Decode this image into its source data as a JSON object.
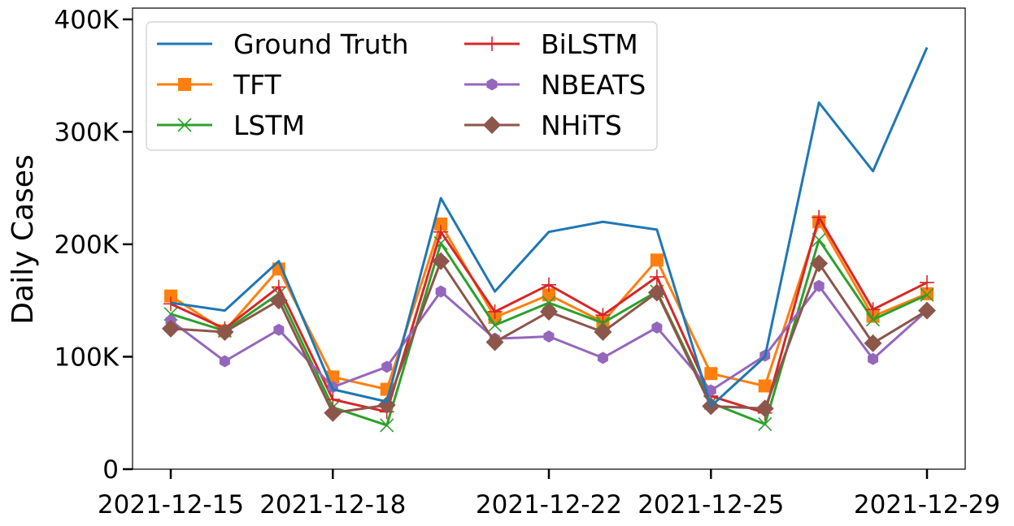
{
  "chart_data": {
    "type": "line",
    "title": "",
    "xlabel": "",
    "ylabel": "Daily Cases",
    "ylim": [
      0,
      410000
    ],
    "y_ticks": [
      0,
      100000,
      200000,
      300000,
      400000
    ],
    "y_tick_labels": [
      "0",
      "100K",
      "200K",
      "300K",
      "400K"
    ],
    "x": [
      "2021-12-15",
      "2021-12-16",
      "2021-12-17",
      "2021-12-18",
      "2021-12-19",
      "2021-12-20",
      "2021-12-21",
      "2021-12-22",
      "2021-12-23",
      "2021-12-24",
      "2021-12-25",
      "2021-12-26",
      "2021-12-27",
      "2021-12-28",
      "2021-12-29"
    ],
    "x_tick_labels": [
      "2021-12-15",
      "2021-12-18",
      "2021-12-22",
      "2021-12-25",
      "2021-12-29"
    ],
    "x_tick_dates": [
      "2021-12-15",
      "2021-12-18",
      "2021-12-22",
      "2021-12-25",
      "2021-12-29"
    ],
    "grid": false,
    "legend": {
      "placement": "top-left",
      "columns": 2
    },
    "series": [
      {
        "name": "Ground Truth",
        "color": "#1f77b4",
        "marker": "none",
        "values": [
          148000,
          141000,
          185000,
          71000,
          60000,
          241000,
          158000,
          211000,
          220000,
          213000,
          56000,
          100000,
          326000,
          265000,
          375000
        ]
      },
      {
        "name": "TFT",
        "color": "#ff7f0e",
        "marker": "square",
        "values": [
          154000,
          123000,
          178000,
          82000,
          71000,
          218000,
          135000,
          155000,
          131000,
          186000,
          85000,
          74000,
          220000,
          136000,
          156000
        ]
      },
      {
        "name": "LSTM",
        "color": "#2ca02c",
        "marker": "x",
        "values": [
          138000,
          123000,
          156000,
          55000,
          39000,
          201000,
          128000,
          148000,
          130000,
          158000,
          59000,
          40000,
          204000,
          133000,
          155000
        ]
      },
      {
        "name": "BiLSTM",
        "color": "#d62728",
        "marker": "plus",
        "values": [
          147000,
          125000,
          162000,
          62000,
          51000,
          211000,
          140000,
          164000,
          137000,
          171000,
          65000,
          50000,
          224000,
          142000,
          166000
        ]
      },
      {
        "name": "NBEATS",
        "color": "#9467bd",
        "marker": "hexagon",
        "values": [
          132000,
          96000,
          124000,
          73000,
          91000,
          158000,
          116000,
          118000,
          99000,
          126000,
          70000,
          101000,
          163000,
          98000,
          141000
        ]
      },
      {
        "name": "NHiTS",
        "color": "#8c564b",
        "marker": "diamond",
        "values": [
          125000,
          122000,
          150000,
          50000,
          57000,
          185000,
          113000,
          140000,
          122000,
          157000,
          56000,
          54000,
          183000,
          112000,
          141000
        ]
      }
    ]
  }
}
